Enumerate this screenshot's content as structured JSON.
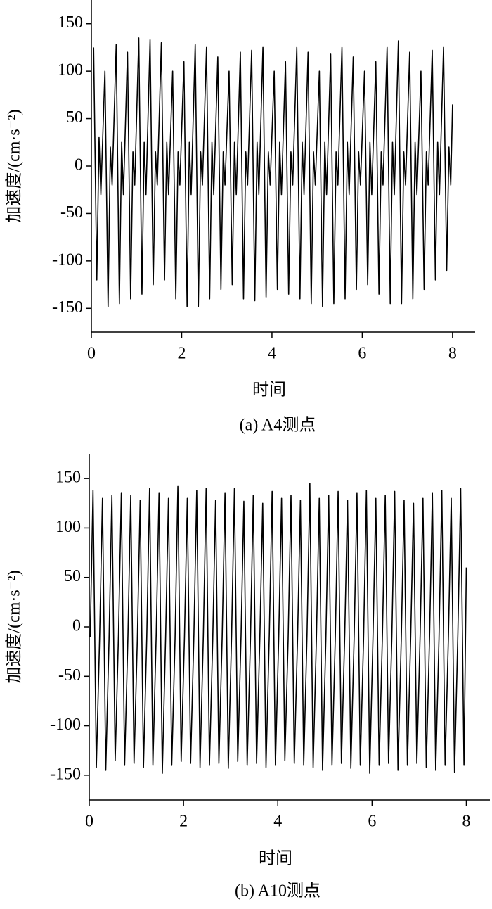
{
  "chart_data": [
    {
      "type": "line",
      "caption": "(a) A4测点",
      "x_label": "时间",
      "y_label": "加速度/(cm·s⁻²)",
      "color": "#000000",
      "xlim": [
        0,
        8.5
      ],
      "ylim": [
        -175,
        175
      ],
      "xticks": [
        0,
        2,
        4,
        6,
        8
      ],
      "yticks": [
        -150,
        -100,
        -50,
        0,
        50,
        100,
        150
      ],
      "x": [
        0.05,
        0.12,
        0.17,
        0.21,
        0.3,
        0.37,
        0.42,
        0.46,
        0.55,
        0.62,
        0.67,
        0.71,
        0.8,
        0.87,
        0.92,
        0.96,
        1.05,
        1.12,
        1.17,
        1.21,
        1.3,
        1.37,
        1.42,
        1.46,
        1.55,
        1.62,
        1.67,
        1.71,
        1.8,
        1.87,
        1.92,
        1.96,
        2.05,
        2.12,
        2.17,
        2.21,
        2.3,
        2.37,
        2.42,
        2.46,
        2.55,
        2.62,
        2.67,
        2.71,
        2.8,
        2.87,
        2.92,
        2.96,
        3.05,
        3.12,
        3.17,
        3.21,
        3.3,
        3.37,
        3.42,
        3.46,
        3.55,
        3.62,
        3.67,
        3.71,
        3.8,
        3.87,
        3.92,
        3.96,
        4.05,
        4.12,
        4.17,
        4.21,
        4.3,
        4.37,
        4.42,
        4.46,
        4.55,
        4.62,
        4.67,
        4.71,
        4.8,
        4.87,
        4.92,
        4.96,
        5.05,
        5.12,
        5.17,
        5.21,
        5.3,
        5.37,
        5.42,
        5.46,
        5.55,
        5.62,
        5.67,
        5.71,
        5.8,
        5.87,
        5.92,
        5.96,
        6.05,
        6.12,
        6.17,
        6.21,
        6.3,
        6.37,
        6.42,
        6.46,
        6.55,
        6.62,
        6.67,
        6.71,
        6.8,
        6.87,
        6.92,
        6.96,
        7.05,
        7.12,
        7.17,
        7.21,
        7.3,
        7.37,
        7.42,
        7.46,
        7.55,
        7.62,
        7.67,
        7.71,
        7.8,
        7.87,
        7.92,
        7.96,
        8.0
      ],
      "values": [
        125,
        -120,
        30,
        -30,
        100,
        -148,
        20,
        -20,
        128,
        -145,
        25,
        -30,
        120,
        -140,
        15,
        -20,
        135,
        -135,
        25,
        -30,
        133,
        -125,
        15,
        -20,
        130,
        -120,
        25,
        -30,
        100,
        -140,
        15,
        -20,
        110,
        -148,
        25,
        -30,
        128,
        -148,
        15,
        -20,
        125,
        -140,
        25,
        -30,
        115,
        -130,
        15,
        -20,
        100,
        -125,
        25,
        -30,
        120,
        -140,
        15,
        -20,
        122,
        -142,
        25,
        -30,
        125,
        -138,
        15,
        -20,
        100,
        -130,
        25,
        -30,
        110,
        -135,
        15,
        -20,
        125,
        -140,
        25,
        -30,
        120,
        -145,
        15,
        -20,
        100,
        -148,
        25,
        -30,
        118,
        -145,
        15,
        -20,
        125,
        -140,
        25,
        -30,
        115,
        -130,
        15,
        -20,
        100,
        -125,
        25,
        -30,
        110,
        -135,
        15,
        -20,
        125,
        -145,
        25,
        -30,
        132,
        -145,
        15,
        -20,
        120,
        -140,
        25,
        -30,
        100,
        -130,
        15,
        -20,
        122,
        -120,
        25,
        -30,
        125,
        -110,
        20,
        -20,
        65
      ]
    },
    {
      "type": "line",
      "caption": "(b) A10测点",
      "x_label": "时间",
      "y_label": "加速度/(cm·s⁻²)",
      "color": "#000000",
      "xlim": [
        0,
        8.5
      ],
      "ylim": [
        -175,
        175
      ],
      "xticks": [
        0,
        2,
        4,
        6,
        8
      ],
      "yticks": [
        -150,
        -100,
        -50,
        0,
        50,
        100,
        150
      ],
      "x": [
        0.02,
        0.08,
        0.15,
        0.22,
        0.28,
        0.35,
        0.42,
        0.48,
        0.55,
        0.62,
        0.68,
        0.75,
        0.82,
        0.88,
        0.95,
        1.02,
        1.08,
        1.15,
        1.22,
        1.28,
        1.35,
        1.42,
        1.48,
        1.55,
        1.62,
        1.68,
        1.75,
        1.82,
        1.88,
        1.95,
        2.02,
        2.08,
        2.15,
        2.22,
        2.28,
        2.35,
        2.42,
        2.48,
        2.55,
        2.62,
        2.68,
        2.75,
        2.82,
        2.88,
        2.95,
        3.02,
        3.08,
        3.15,
        3.22,
        3.28,
        3.35,
        3.42,
        3.48,
        3.55,
        3.62,
        3.68,
        3.75,
        3.82,
        3.88,
        3.95,
        4.02,
        4.08,
        4.15,
        4.22,
        4.28,
        4.35,
        4.42,
        4.48,
        4.55,
        4.62,
        4.68,
        4.75,
        4.82,
        4.88,
        4.95,
        5.02,
        5.08,
        5.15,
        5.22,
        5.28,
        5.35,
        5.42,
        5.48,
        5.55,
        5.62,
        5.68,
        5.75,
        5.82,
        5.88,
        5.95,
        6.02,
        6.08,
        6.15,
        6.22,
        6.28,
        6.35,
        6.42,
        6.48,
        6.55,
        6.62,
        6.68,
        6.75,
        6.82,
        6.88,
        6.95,
        7.02,
        7.08,
        7.15,
        7.22,
        7.28,
        7.35,
        7.42,
        7.48,
        7.55,
        7.62,
        7.68,
        7.75,
        7.82,
        7.88,
        7.95,
        8.0
      ],
      "values": [
        -10,
        138,
        -142,
        -10,
        130,
        -145,
        -12,
        133,
        -135,
        -8,
        135,
        -140,
        -10,
        133,
        -138,
        -12,
        128,
        -142,
        -10,
        140,
        -140,
        -8,
        135,
        -148,
        -10,
        130,
        -140,
        -12,
        142,
        -136,
        -10,
        130,
        -138,
        -8,
        138,
        -142,
        -10,
        140,
        -140,
        -12,
        128,
        -138,
        -10,
        135,
        -143,
        -8,
        140,
        -136,
        -10,
        127,
        -140,
        -12,
        133,
        -138,
        -10,
        125,
        -142,
        -8,
        137,
        -140,
        -10,
        130,
        -135,
        -12,
        133,
        -138,
        -10,
        128,
        -140,
        -8,
        145,
        -142,
        -10,
        130,
        -145,
        -12,
        133,
        -140,
        -10,
        137,
        -138,
        -8,
        128,
        -143,
        -10,
        135,
        -140,
        -12,
        138,
        -148,
        -10,
        130,
        -140,
        -8,
        133,
        -138,
        -10,
        137,
        -145,
        -12,
        128,
        -140,
        -10,
        125,
        -138,
        -8,
        130,
        -142,
        -10,
        135,
        -145,
        -12,
        138,
        -140,
        -10,
        130,
        -147,
        -8,
        140,
        -140,
        60
      ]
    }
  ]
}
